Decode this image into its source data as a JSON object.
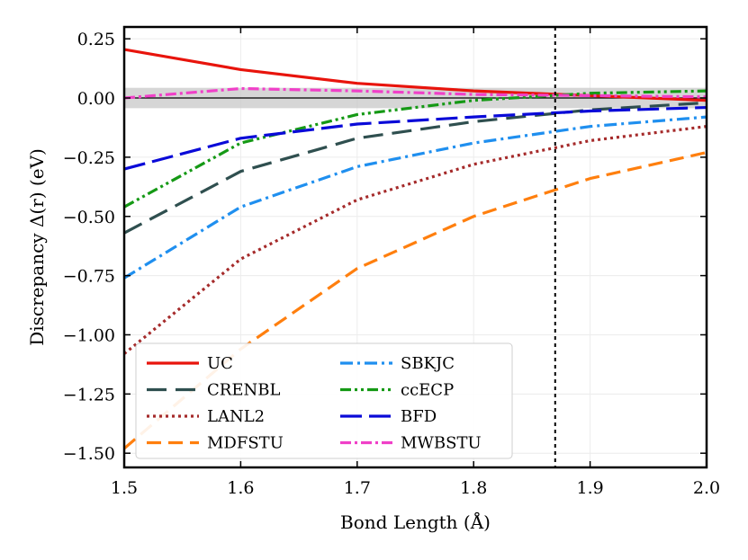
{
  "chart_data": {
    "type": "line",
    "title": "",
    "xlabel": "Bond Length (Å)",
    "ylabel": "Discrepancy Δ(r) (eV)",
    "xlim": [
      1.5,
      2.0
    ],
    "ylim": [
      -1.56,
      0.3
    ],
    "x_ticks": [
      "1.5",
      "1.6",
      "1.7",
      "1.8",
      "1.9",
      "2.0"
    ],
    "y_ticks": [
      "0.25",
      "0.00",
      "−0.25",
      "−0.50",
      "−0.75",
      "−1.00",
      "−1.25",
      "−1.50"
    ],
    "x_tick_values": [
      1.5,
      1.6,
      1.7,
      1.8,
      1.9,
      2.0
    ],
    "y_tick_values": [
      0.25,
      0.0,
      -0.25,
      -0.5,
      -0.75,
      -1.0,
      -1.25,
      -1.5
    ],
    "grid": true,
    "chemical_accuracy_band": [
      -0.043,
      0.043
    ],
    "reference_line_x": 1.87,
    "legend_position": "lower-left",
    "x": [
      1.5,
      1.6,
      1.7,
      1.8,
      1.9,
      2.0
    ],
    "series": [
      {
        "name": "UC",
        "color": "#e8140c",
        "dash": "",
        "values": [
          0.205,
          0.12,
          0.062,
          0.03,
          0.01,
          -0.01
        ]
      },
      {
        "name": "CRENBL",
        "color": "#2f4f4f",
        "dash": "22,10",
        "values": [
          -0.57,
          -0.31,
          -0.17,
          -0.1,
          -0.05,
          -0.02
        ]
      },
      {
        "name": "LANL2",
        "color": "#a52a2a",
        "dash": "3,4",
        "values": [
          -1.08,
          -0.68,
          -0.43,
          -0.28,
          -0.18,
          -0.12
        ]
      },
      {
        "name": "MDFSTU",
        "color": "#ff7f0e",
        "dash": "16,8",
        "values": [
          -1.48,
          -1.06,
          -0.72,
          -0.5,
          -0.34,
          -0.23
        ]
      },
      {
        "name": "SBKJC",
        "color": "#1f8fef",
        "dash": "14,5,3,5",
        "values": [
          -0.76,
          -0.46,
          -0.29,
          -0.19,
          -0.12,
          -0.08
        ]
      },
      {
        "name": "ccECP",
        "color": "#159915",
        "dash": "12,4,3,4,3,4",
        "values": [
          -0.46,
          -0.19,
          -0.07,
          -0.01,
          0.02,
          0.03
        ]
      },
      {
        "name": "BFD",
        "color": "#0a0ad8",
        "dash": "24,8",
        "values": [
          -0.3,
          -0.17,
          -0.11,
          -0.08,
          -0.055,
          -0.04
        ]
      },
      {
        "name": "MWBSTU",
        "color": "#f040c8",
        "dash": "12,4,3,4",
        "values": [
          0.0,
          0.04,
          0.03,
          0.015,
          0.01,
          0.005
        ]
      }
    ]
  }
}
